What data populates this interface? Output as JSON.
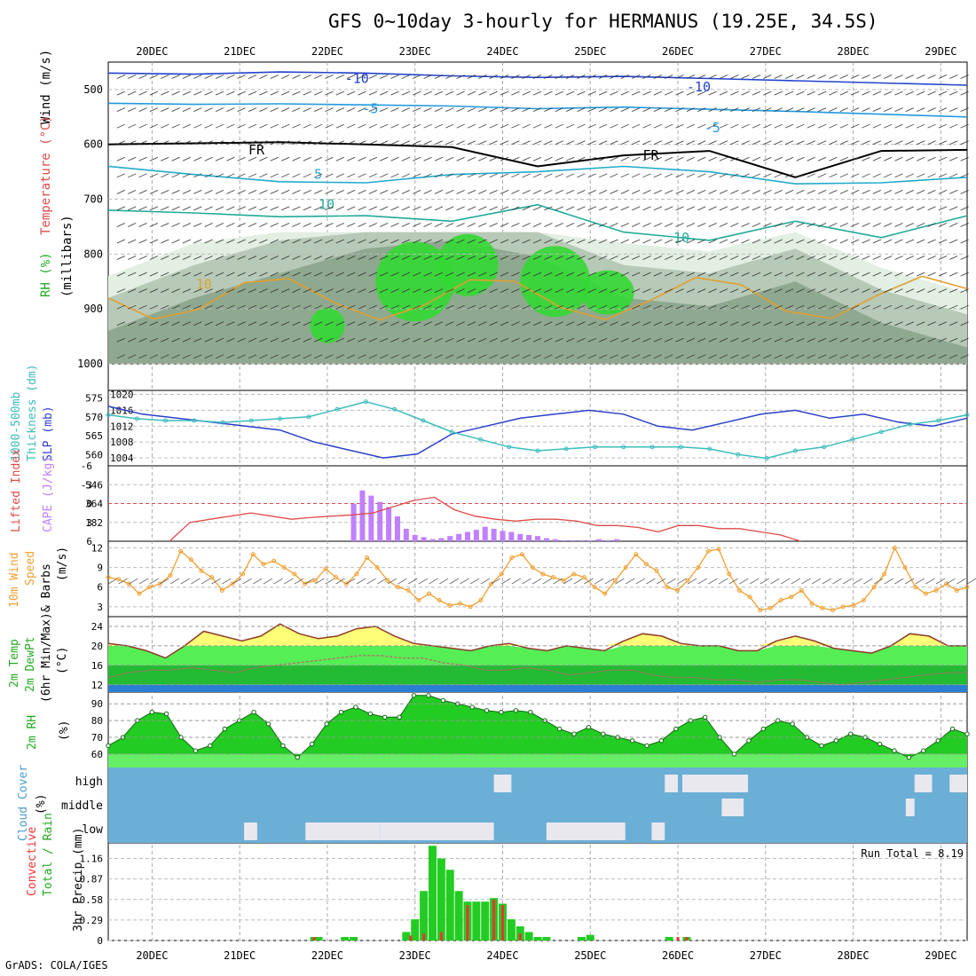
{
  "title": "GFS 0~10day 3-hourly for HERMANUS (19.25E, 34.5S)",
  "credit": "GrADS: COLA/IGES",
  "colors": {
    "rh_light": "#e2efe2",
    "rh_mid": "#b7c9b7",
    "rh_dark": "#8fa890",
    "rh_green": "#33d833",
    "rh_bright": "#11ee11",
    "slp": "#2c3ec8",
    "thickness": "#3cbcbc",
    "cape": "#c080ff",
    "lifted": "#e04a4a",
    "wind": "#f0a030",
    "temp_fill": "#ffff77",
    "dew_fill": "#44dd44",
    "cloud": "#6baed6",
    "precip_total": "#22cc22",
    "precip_conv": "#ee3333"
  },
  "chart_data": {
    "type": "meteogram",
    "x_labels": [
      "20DEC",
      "21DEC",
      "22DEC",
      "23DEC",
      "24DEC",
      "25DEC",
      "26DEC",
      "27DEC",
      "28DEC",
      "29DEC"
    ],
    "x_start_offset_days": -0.5,
    "x_end_offset_days": 9.3,
    "panels": [
      {
        "id": "upper",
        "ylabel_parts": [
          "Wind (m/s)",
          "Temperature (°C)",
          "RH (%)",
          "(millibars)"
        ],
        "y_ticks": [
          500,
          600,
          700,
          800,
          900,
          1000
        ],
        "ylim": [
          450,
          1000
        ],
        "isotherm_labels": [
          "-10",
          "-5",
          "FR",
          "5",
          "10",
          "-10",
          "-5",
          "FR",
          "10",
          "10"
        ],
        "isotherms": [
          {
            "label": "-10",
            "levels": [
              470,
              472,
              468,
              470,
              475,
              478,
              476,
              480,
              484,
              488,
              492
            ]
          },
          {
            "label": "-5",
            "levels": [
              525,
              527,
              526,
              528,
              530,
              535,
              532,
              536,
              540,
              545,
              550
            ]
          },
          {
            "label": "FR",
            "levels": [
              600,
              598,
              596,
              600,
              605,
              640,
              620,
              612,
              660,
              612,
              610
            ]
          },
          {
            "label": "5",
            "levels": [
              640,
              655,
              668,
              670,
              655,
              650,
              640,
              650,
              672,
              670,
              660
            ]
          },
          {
            "label": "10",
            "levels": [
              720,
              725,
              732,
              730,
              740,
              710,
              760,
              775,
              740,
              770,
              730
            ]
          }
        ],
        "rh_dry_fraction_sample": [
          40,
          60,
          75,
          90,
          95,
          85,
          60,
          55,
          70,
          45,
          30
        ]
      },
      {
        "id": "slp_thickness",
        "ylabel": [
          "1000-500mb",
          "Thickness (dm)",
          "SLP (mb)"
        ],
        "thickness_ticks": [
          560,
          565,
          570,
          575
        ],
        "slp_ticks": [
          1004,
          1008,
          1012,
          1016,
          1020
        ],
        "series": [
          {
            "name": "SLP (mb)",
            "axis": "right_range",
            "values": [
              1017,
              1015,
              1014,
              1013,
              1012,
              1011,
              1008,
              1006,
              1004,
              1005,
              1010,
              1012,
              1014,
              1015,
              1016,
              1015,
              1012,
              1011,
              1013,
              1015,
              1016,
              1014,
              1015,
              1013,
              1012,
              1014
            ]
          },
          {
            "name": "Thickness (dm)",
            "axis": "left_range",
            "values": [
              570.5,
              569.5,
              569,
              569,
              568.5,
              569,
              569.5,
              570,
              572,
              574,
              572,
              569,
              566,
              564,
              562,
              561,
              561.5,
              562,
              562,
              562,
              562,
              561.5,
              560,
              559,
              561,
              562,
              564,
              566,
              568,
              569,
              570.5
            ]
          }
        ]
      },
      {
        "id": "cape_li",
        "ylabel": [
          "Lifted Index",
          "CAPE (J/kg)"
        ],
        "li_ticks": [
          -6,
          -3,
          0,
          3,
          6
        ],
        "cape_ticks": [
          182,
          364,
          546
        ],
        "series": [
          {
            "name": "CAPE",
            "type": "bar",
            "x_day": [
              2.3,
              2.4,
              2.5,
              2.6,
              2.7,
              2.8,
              2.9,
              3.0,
              3.1,
              3.2,
              3.3,
              3.4,
              3.5,
              3.6,
              3.7,
              3.8,
              3.9,
              4.0,
              4.1,
              4.2,
              4.3,
              4.4,
              4.5,
              4.6,
              4.7,
              4.8,
              4.9,
              5.0,
              5.1,
              5.2,
              5.3
            ],
            "values": [
              360,
              490,
              440,
              380,
              330,
              240,
              120,
              60,
              40,
              20,
              30,
              50,
              70,
              90,
              110,
              140,
              120,
              100,
              90,
              70,
              60,
              50,
              30,
              20,
              10,
              10,
              10,
              10,
              20,
              10,
              20
            ]
          },
          {
            "name": "Lifted Index",
            "type": "line",
            "values": [
              6,
              3,
              2.5,
              2,
              1.5,
              2,
              2.5,
              2.2,
              2.0,
              1.8,
              1.5,
              0.5,
              -0.5,
              -1,
              1,
              2,
              2.5,
              2.8,
              2.5,
              2.5,
              2.8,
              3.5,
              3.5,
              3.8,
              4.5,
              3.5,
              3.5,
              4,
              4,
              4.5,
              5,
              6
            ]
          }
        ]
      },
      {
        "id": "wind",
        "ylabel": [
          "10m Wind",
          "Speed",
          "& Barbs",
          "(m/s)"
        ],
        "y_ticks": [
          3,
          6,
          9,
          12
        ],
        "ylim": [
          1.5,
          13
        ],
        "series": [
          {
            "name": "Speed",
            "values": [
              7.5,
              7.2,
              6.5,
              5,
              6,
              6.5,
              7.8,
              11.5,
              10.2,
              8.5,
              7.5,
              5.5,
              6.5,
              8,
              11,
              9.5,
              10,
              9,
              8,
              6.5,
              7,
              8.8,
              7.5,
              6.5,
              8,
              10.5,
              9,
              7,
              6,
              5.5,
              4,
              5,
              4,
              3.2,
              3.5,
              3,
              4,
              6.5,
              8,
              10.5,
              11,
              9,
              8,
              7.5,
              7,
              8,
              7.5,
              6,
              5,
              7,
              9,
              11,
              9.5,
              8.5,
              6,
              5.5,
              7,
              9,
              11.5,
              11.8,
              8,
              5.5,
              4.5,
              2.5,
              2.8,
              4,
              4.5,
              5.5,
              3.5,
              2.8,
              2.5,
              3,
              3.2,
              4,
              6,
              8,
              12,
              9,
              6,
              5,
              5.5,
              6.5,
              5.5,
              6
            ]
          }
        ]
      },
      {
        "id": "temp",
        "ylabel": [
          "2m Temp",
          "2m DewPt",
          "(6hr Min/Max)",
          "(°C)"
        ],
        "y_ticks": [
          12,
          16,
          20,
          24
        ],
        "ylim": [
          10.5,
          26
        ],
        "series": [
          {
            "name": "2m Temp",
            "values": [
              20.5,
              20,
              19,
              17.5,
              20,
              23,
              22,
              21,
              22,
              24.5,
              22.5,
              21.5,
              22,
              23.5,
              24,
              22,
              20.5,
              20,
              19.5,
              19,
              20,
              20.5,
              19.5,
              19,
              20,
              19.5,
              19,
              21,
              22.5,
              22,
              20.5,
              20,
              20,
              19,
              19,
              21,
              22,
              21,
              19.5,
              19,
              18.5,
              20,
              22.5,
              22,
              20,
              20
            ]
          },
          {
            "name": "2m DewPt",
            "values": [
              13.5,
              14.5,
              15,
              15,
              15.5,
              15,
              14.5,
              15.5,
              16,
              16.5,
              17,
              17.5,
              18,
              18,
              17.5,
              17.5,
              16.5,
              16,
              15,
              15,
              15.5,
              15,
              14,
              14.5,
              15,
              15,
              14,
              13.5,
              13.5,
              13,
              13,
              12.5,
              13,
              13,
              12.5,
              12,
              12.5,
              13,
              13.5,
              14,
              14.5,
              14.5
            ]
          }
        ]
      },
      {
        "id": "rh2m",
        "ylabel": [
          "2m RH",
          "(%)"
        ],
        "y_ticks": [
          60,
          70,
          80,
          90
        ],
        "ylim": [
          52,
          97
        ],
        "series": [
          {
            "name": "2m RH",
            "values": [
              65,
              70,
              80,
              85,
              84,
              70,
              62,
              65,
              75,
              80,
              85,
              78,
              65,
              58,
              66,
              78,
              85,
              88,
              84,
              82,
              82,
              95,
              95,
              92,
              90,
              88,
              86,
              85,
              86,
              85,
              80,
              75,
              72,
              76,
              72,
              70,
              68,
              65,
              68,
              75,
              80,
              82,
              70,
              60,
              68,
              75,
              80,
              78,
              70,
              65,
              68,
              72,
              70,
              66,
              62,
              58,
              62,
              68,
              75,
              72
            ]
          }
        ]
      },
      {
        "id": "cloud",
        "ylabel": [
          "Cloud Cover",
          "(%)"
        ],
        "rows": [
          "high",
          "middle",
          "low"
        ],
        "high_segments": [
          [
            3.9,
            4.1
          ],
          [
            5.85,
            6.0
          ],
          [
            6.05,
            6.8
          ],
          [
            8.7,
            8.9
          ],
          [
            9.1,
            9.3
          ]
        ],
        "middle_segments": [
          [
            6.5,
            6.75
          ],
          [
            8.6,
            8.7
          ]
        ],
        "low_segments": [
          [
            1.05,
            1.2
          ],
          [
            1.75,
            2.6
          ],
          [
            2.6,
            3.9
          ],
          [
            4.5,
            5.4
          ],
          [
            5.7,
            5.85
          ]
        ]
      },
      {
        "id": "precip",
        "ylabel": [
          "3hr Precip (mm)",
          "Total / Rain",
          "Convective"
        ],
        "run_total_label": "Run Total = ",
        "run_total": "8.19",
        "y_ticks": [
          "0",
          "0.29",
          "0.58",
          "0.87",
          "1.16"
        ],
        "ylim": [
          0,
          1.38
        ],
        "series": [
          {
            "name": "Total",
            "x_day": [
              1.85,
              1.9,
              2.2,
              2.3,
              2.9,
              3.0,
              3.1,
              3.2,
              3.3,
              3.4,
              3.5,
              3.6,
              3.7,
              3.8,
              3.9,
              4.0,
              4.1,
              4.2,
              4.3,
              4.4,
              4.5,
              4.9,
              5.0,
              5.9,
              6.1
            ],
            "values": [
              0.05,
              0.05,
              0.05,
              0.05,
              0.12,
              0.3,
              0.7,
              1.34,
              1.16,
              1.0,
              0.7,
              0.55,
              0.55,
              0.55,
              0.6,
              0.52,
              0.3,
              0.2,
              0.12,
              0.05,
              0.05,
              0.05,
              0.08,
              0.05,
              0.05
            ]
          },
          {
            "name": "Convective",
            "x_day": [
              1.85,
              2.95,
              3.1,
              3.3,
              3.6,
              3.9,
              4.0,
              4.2,
              6.0,
              6.1
            ],
            "values": [
              0.05,
              0.07,
              0.1,
              0.12,
              0.5,
              0.58,
              0.5,
              0.1,
              0.05,
              0.05
            ]
          }
        ]
      }
    ]
  }
}
